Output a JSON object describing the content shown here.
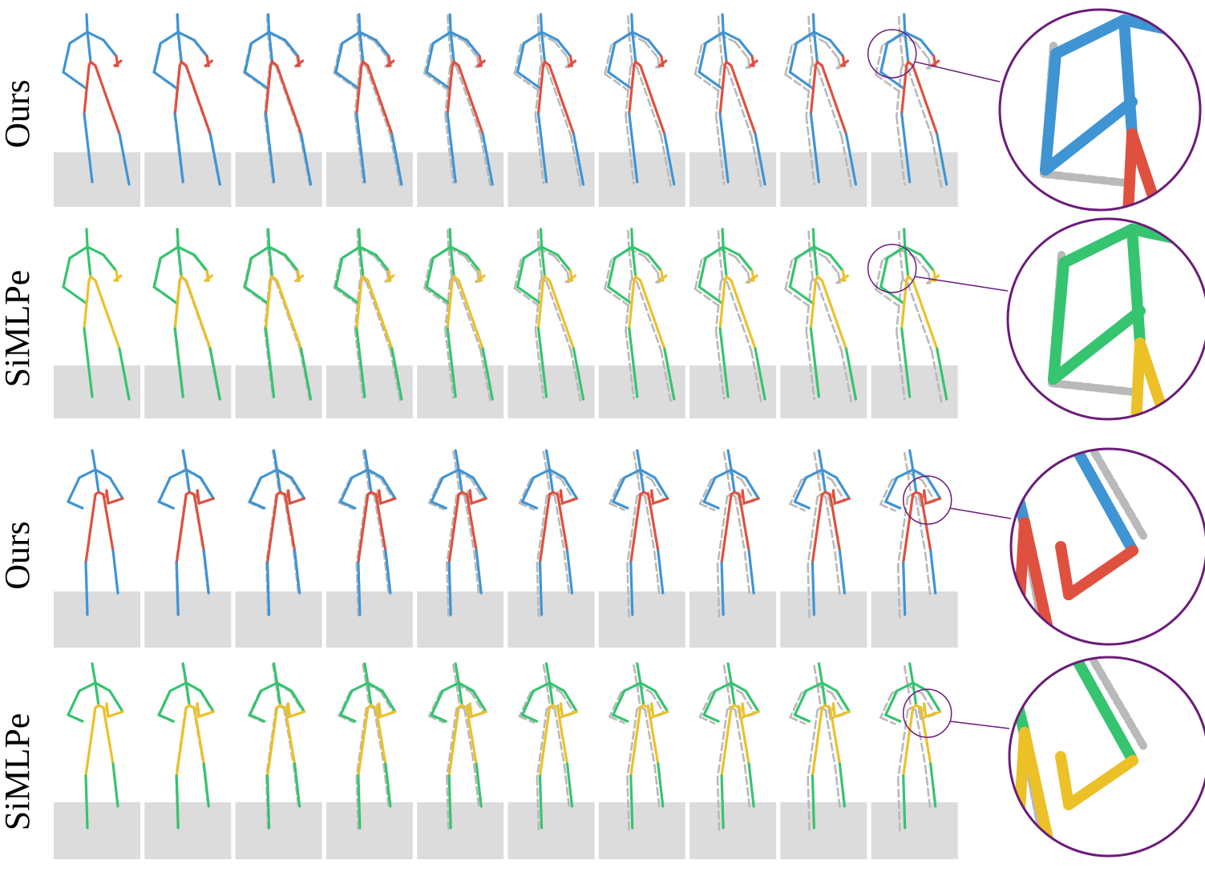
{
  "rows": [
    {
      "label": "Ours",
      "method": "ours"
    },
    {
      "label": "SiMLPe",
      "method": "simlpe"
    },
    {
      "label": "Ours",
      "method": "ours"
    },
    {
      "label": "SiMLPe",
      "method": "simlpe"
    }
  ],
  "frames_per_row": 10,
  "colors": {
    "ours_upper": "#3f94d4",
    "ours_lower": "#e0503f",
    "simlpe_upper": "#35c46f",
    "simlpe_lower": "#ecc128",
    "ground_truth": "#b9b9b9",
    "ground": "#dcdcdc",
    "zoom_circle": "#6b1c7a"
  }
}
